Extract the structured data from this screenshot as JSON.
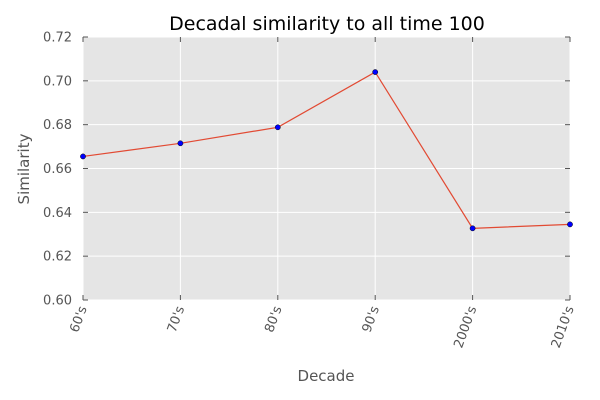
{
  "chart_data": {
    "type": "line",
    "title": "Decadal similarity to all time 100",
    "xlabel": "Decade",
    "ylabel": "Similarity",
    "categories": [
      "60's",
      "70's",
      "80's",
      "90's",
      "2000's",
      "2010's"
    ],
    "series": [
      {
        "name": "Similarity",
        "values": [
          0.6655,
          0.6715,
          0.6788,
          0.704,
          0.6327,
          0.6345
        ]
      }
    ],
    "ylim": [
      0.6,
      0.72
    ],
    "yticks": [
      "0.60",
      "0.62",
      "0.64",
      "0.66",
      "0.68",
      "0.70",
      "0.72"
    ],
    "grid": true,
    "legend": "none",
    "colors": {
      "line": "#e24a33",
      "marker": "#0000ff",
      "plot_bg": "#e5e5e5",
      "grid": "#ffffff"
    }
  }
}
